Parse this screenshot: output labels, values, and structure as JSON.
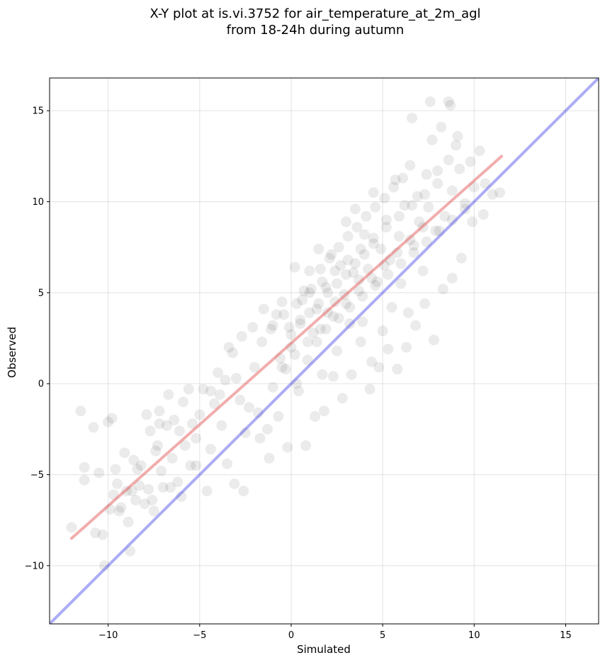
{
  "chart_data": {
    "type": "scatter",
    "title": "X-Y plot at is.vi.3752 for air_temperature_at_2m_agl",
    "subtitle": "from 18-24h during autumn",
    "xlabel": "Simulated",
    "ylabel": "Observed",
    "xlim": [
      -13.2,
      16.8
    ],
    "ylim": [
      -13.2,
      16.8
    ],
    "xticks": [
      -10,
      -5,
      0,
      5,
      10,
      15
    ],
    "yticks": [
      -10,
      -5,
      0,
      5,
      10,
      15
    ],
    "tick_labels": [
      "−10",
      "−5",
      "0",
      "5",
      "10",
      "15"
    ],
    "grid": true,
    "legend": "none",
    "series": [
      {
        "kind": "points",
        "color": "#000000",
        "opacity": 0.08,
        "x": [
          -12.0,
          -11.5,
          -11.3,
          -11.3,
          -10.8,
          -10.7,
          -10.5,
          -10.3,
          -10.2,
          -10.0,
          -9.9,
          -9.8,
          -9.7,
          -9.6,
          -9.5,
          -9.4,
          -9.3,
          -9.1,
          -8.9,
          -8.8,
          -8.7,
          -8.6,
          -8.5,
          -8.3,
          -8.2,
          -8.0,
          -7.9,
          -7.8,
          -7.7,
          -7.6,
          -7.5,
          -7.4,
          -7.3,
          -7.2,
          -7.1,
          -7.0,
          -6.8,
          -6.7,
          -6.5,
          -6.4,
          -6.2,
          -6.1,
          -6.0,
          -5.9,
          -5.8,
          -5.6,
          -5.5,
          -5.4,
          -5.2,
          -5.0,
          -4.8,
          -4.6,
          -4.4,
          -4.2,
          -4.0,
          -3.8,
          -3.6,
          -3.5,
          -3.4,
          -3.2,
          -3.0,
          -2.8,
          -2.7,
          -2.5,
          -2.3,
          -2.1,
          -2.0,
          -1.8,
          -1.6,
          -1.5,
          -1.3,
          -1.1,
          -1.0,
          -0.8,
          -0.6,
          -0.5,
          -0.3,
          -0.1,
          0.0,
          0.2,
          0.4,
          0.5,
          0.7,
          0.9,
          1.0,
          1.2,
          1.4,
          1.5,
          1.7,
          1.9,
          2.0,
          2.2,
          2.4,
          2.5,
          2.7,
          2.9,
          3.0,
          3.2,
          3.4,
          3.5,
          3.7,
          3.9,
          4.0,
          4.2,
          4.4,
          4.5,
          4.7,
          4.9,
          5.0,
          5.2,
          5.4,
          5.5,
          5.7,
          5.9,
          6.0,
          6.2,
          6.4,
          6.5,
          6.7,
          6.9,
          7.0,
          7.2,
          7.4,
          7.5,
          7.7,
          7.9,
          8.0,
          8.2,
          8.4,
          8.6,
          8.8,
          9.0,
          9.2,
          9.5,
          9.8,
          10.0,
          10.3,
          10.6,
          11.0,
          11.4,
          -9.0,
          -8.4,
          -7.2,
          -6.6,
          -5.2,
          -4.4,
          -3.9,
          -3.1,
          -2.6,
          -1.7,
          -1.2,
          -0.7,
          -0.2,
          0.3,
          0.8,
          1.3,
          1.8,
          2.3,
          2.8,
          3.3,
          3.8,
          4.3,
          4.8,
          5.3,
          5.8,
          6.3,
          6.8,
          7.3,
          7.8,
          8.3,
          8.8,
          9.3,
          9.9,
          10.5,
          0.6,
          1.1,
          1.6,
          2.1,
          2.6,
          3.1,
          3.6,
          4.1,
          4.6,
          5.1,
          5.6,
          6.1,
          0.0,
          0.5,
          1.0,
          1.5,
          2.0,
          2.5,
          3.0,
          3.5,
          4.0,
          4.5,
          -0.5,
          0.2,
          0.9,
          1.6,
          2.3,
          3.0,
          3.7,
          4.4,
          5.1,
          5.8,
          6.5,
          7.2,
          -1.0,
          -0.4,
          0.3,
          1.0,
          1.7,
          2.4,
          3.1,
          3.8,
          4.5,
          5.2,
          5.9,
          6.6,
          7.3,
          8.0,
          1.4,
          1.9,
          2.6,
          3.2,
          3.9,
          4.6,
          5.3,
          6.0,
          6.7,
          7.4,
          8.1,
          8.8,
          9.5,
          7.6,
          8.6,
          8.7,
          6.6,
          9.1
        ],
        "y": [
          -7.9,
          -1.5,
          -4.6,
          -5.3,
          -2.4,
          -8.2,
          -4.9,
          -8.3,
          -10.0,
          -2.1,
          -6.9,
          -1.9,
          -6.1,
          -4.7,
          -5.5,
          -7.0,
          -6.8,
          -3.8,
          -7.6,
          -9.2,
          -5.9,
          -4.2,
          -6.4,
          -5.6,
          -4.5,
          -6.6,
          -1.7,
          -5.8,
          -2.6,
          -6.4,
          -7.0,
          -3.7,
          -3.4,
          -1.5,
          -4.8,
          -5.7,
          -2.3,
          -0.6,
          -4.1,
          -2.0,
          -5.4,
          -2.6,
          -6.2,
          -1.0,
          -3.4,
          -0.3,
          -4.5,
          -2.2,
          -3.0,
          -1.7,
          -0.3,
          -5.9,
          -0.4,
          -1.1,
          0.6,
          -2.3,
          0.2,
          -4.4,
          2.0,
          1.7,
          0.3,
          -0.9,
          2.6,
          -2.7,
          -1.3,
          3.1,
          0.9,
          -1.6,
          2.3,
          4.1,
          -2.5,
          3.0,
          -0.2,
          3.8,
          1.4,
          4.5,
          0.8,
          3.1,
          2.0,
          6.4,
          -0.4,
          3.5,
          5.1,
          1.3,
          6.2,
          2.8,
          4.1,
          7.4,
          0.5,
          5.3,
          3.9,
          7.1,
          4.5,
          1.8,
          6.5,
          4.9,
          8.9,
          3.3,
          6.1,
          9.6,
          5.7,
          3.4,
          8.2,
          6.3,
          1.2,
          10.5,
          5.6,
          7.4,
          2.9,
          9.0,
          6.8,
          4.2,
          11.2,
          8.1,
          5.5,
          9.8,
          3.9,
          12.0,
          7.6,
          10.3,
          8.9,
          6.2,
          11.5,
          9.7,
          13.4,
          8.4,
          11.7,
          14.1,
          9.2,
          12.3,
          10.6,
          13.1,
          11.8,
          9.9,
          12.2,
          10.8,
          12.8,
          11.0,
          10.4,
          10.5,
          -5.9,
          -4.7,
          -2.2,
          -5.7,
          -4.5,
          -3.6,
          -0.6,
          -5.5,
          -5.9,
          -3.0,
          -4.1,
          -1.8,
          -3.5,
          0.0,
          -3.4,
          -1.8,
          -1.5,
          0.4,
          -0.8,
          0.5,
          2.3,
          -0.3,
          0.9,
          1.9,
          0.8,
          2.0,
          3.2,
          4.4,
          2.4,
          5.2,
          5.8,
          6.9,
          8.9,
          9.3,
          4.6,
          5.2,
          6.3,
          6.9,
          7.5,
          8.1,
          8.6,
          9.2,
          9.7,
          10.2,
          10.8,
          11.3,
          2.7,
          3.3,
          3.9,
          4.4,
          5.0,
          5.5,
          6.0,
          6.6,
          7.1,
          7.7,
          0.9,
          1.6,
          2.3,
          3.0,
          3.7,
          4.4,
          5.1,
          5.8,
          6.5,
          7.2,
          7.9,
          8.6,
          3.2,
          3.8,
          4.4,
          5.0,
          5.6,
          6.2,
          6.8,
          7.4,
          8.0,
          8.6,
          9.2,
          9.8,
          10.4,
          11.0,
          2.3,
          3.0,
          3.6,
          4.2,
          4.8,
          5.4,
          6.0,
          6.6,
          7.2,
          7.8,
          8.4,
          9.0,
          9.6,
          15.5,
          15.5,
          15.3,
          14.6,
          13.6
        ]
      },
      {
        "kind": "line",
        "color": "#e34a4a",
        "opacity": 0.45,
        "x": [
          -12.0,
          11.5
        ],
        "y": [
          -8.5,
          12.5
        ]
      },
      {
        "kind": "line",
        "color": "#3030e6",
        "opacity": 0.4,
        "x": [
          -13.2,
          16.8
        ],
        "y": [
          -13.2,
          16.8
        ]
      }
    ]
  }
}
